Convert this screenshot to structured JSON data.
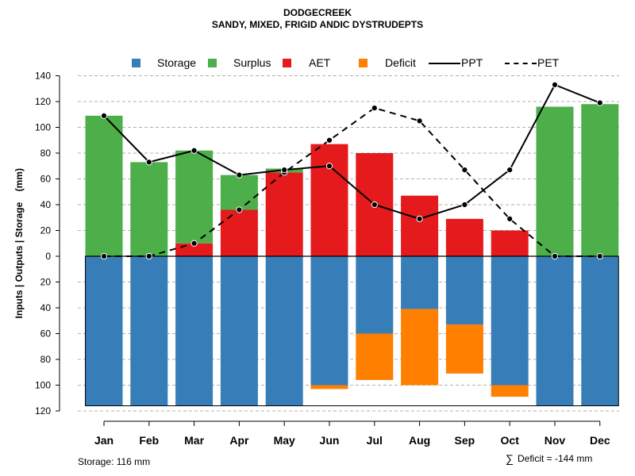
{
  "title": "DODGECREEK",
  "subtitle": "SANDY, MIXED, FRIGID ANDIC DYSTRUDEPTS",
  "legend": [
    {
      "label": "Storage",
      "kind": "box",
      "color": "#377EB8"
    },
    {
      "label": "Surplus",
      "kind": "box",
      "color": "#4DAF4A"
    },
    {
      "label": "AET",
      "kind": "box",
      "color": "#E41A1C"
    },
    {
      "label": "Deficit",
      "kind": "box",
      "color": "#FF7F00"
    },
    {
      "label": "PPT",
      "kind": "solid",
      "color": "#000000"
    },
    {
      "label": "PET",
      "kind": "dashed",
      "color": "#000000"
    }
  ],
  "footer": {
    "storage": "Storage: 116 mm",
    "deficit_symbol": "∑",
    "deficit": "Deficit = -144 mm"
  },
  "chart_data": {
    "type": "bar",
    "title": "DODGECREEK",
    "subtitle": "SANDY, MIXED, FRIGID ANDIC DYSTRUDEPTS",
    "ylabel": "Inputs | Outputs | Storage    (mm)",
    "xlabel": "",
    "ylim": [
      -120,
      140
    ],
    "yticks": [
      140,
      120,
      100,
      80,
      60,
      40,
      20,
      0,
      -20,
      -40,
      -60,
      -80,
      -100,
      -120
    ],
    "ytick_labels": [
      "140",
      "120",
      "100",
      "80",
      "60",
      "40",
      "20",
      "0",
      "20",
      "40",
      "60",
      "80",
      "100",
      "120"
    ],
    "grid": true,
    "categories": [
      "Jan",
      "Feb",
      "Mar",
      "Apr",
      "May",
      "Jun",
      "Jul",
      "Aug",
      "Sep",
      "Oct",
      "Nov",
      "Dec"
    ],
    "colors": {
      "storage": "#377EB8",
      "surplus": "#4DAF4A",
      "aet": "#E41A1C",
      "deficit": "#FF7F00"
    },
    "series": [
      {
        "name": "AET",
        "values": [
          0,
          0,
          10,
          36,
          65,
          87,
          80,
          47,
          29,
          20,
          0,
          0
        ]
      },
      {
        "name": "Surplus",
        "values": [
          109,
          73,
          72,
          27,
          3,
          0,
          0,
          0,
          0,
          0,
          116,
          118
        ]
      },
      {
        "name": "Storage",
        "values": [
          116,
          116,
          116,
          116,
          116,
          100,
          60,
          41,
          53,
          100,
          116,
          116
        ]
      },
      {
        "name": "Deficit",
        "values": [
          0,
          0,
          0,
          0,
          0,
          3,
          36,
          59,
          38,
          9,
          0,
          0
        ]
      },
      {
        "name": "PPT",
        "values": [
          109,
          73,
          82,
          63,
          67,
          70,
          40,
          29,
          40,
          67,
          133,
          119
        ]
      },
      {
        "name": "PET",
        "values": [
          0,
          0,
          10,
          36,
          65,
          90,
          115,
          105,
          67,
          29,
          0,
          0
        ]
      }
    ],
    "storage_capacity": 116,
    "total_deficit": -144
  }
}
